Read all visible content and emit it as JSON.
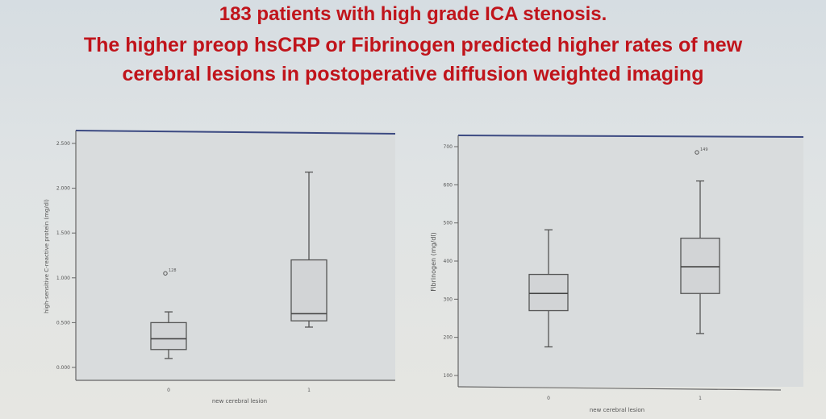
{
  "slide": {
    "title_line1": "183 patients with high grade ICA stenosis.",
    "title_line2": "The higher preop hsCRP or Fibrinogen predicted higher rates of new",
    "title_line3": "cerebral lesions in postoperative diffusion weighted imaging",
    "title_color": "#c0141b"
  },
  "chart_data": [
    {
      "type": "box",
      "ylabel": "high-sensitive C-reactive protein (mg/dl)",
      "xlabel": "new cerebral lesion",
      "categories": [
        "0",
        "1"
      ],
      "ylim": [
        0,
        2.5
      ],
      "yticks": [
        0.0,
        0.5,
        1.0,
        1.5,
        2.0,
        2.5
      ],
      "ytick_labels": [
        "0.000",
        "0.500",
        "1.000",
        "1.500",
        "2.000",
        "2.500"
      ],
      "boxes": [
        {
          "category": "0",
          "min": 0.1,
          "q1": 0.2,
          "median": 0.32,
          "q3": 0.5,
          "max": 0.62
        },
        {
          "category": "1",
          "min": 0.45,
          "q1": 0.52,
          "median": 0.6,
          "q3": 1.2,
          "max": 2.18
        }
      ],
      "outliers": [
        {
          "category": "0",
          "value": 1.05,
          "label": "128"
        }
      ],
      "grid": false
    },
    {
      "type": "box",
      "ylabel": "Fibrinogen (mg/dl)",
      "xlabel": "new cerebral lesion",
      "categories": [
        "0",
        "1"
      ],
      "ylim": [
        100,
        700
      ],
      "yticks": [
        100,
        200,
        300,
        400,
        500,
        600,
        700
      ],
      "ytick_labels": [
        "100",
        "200",
        "300",
        "400",
        "500",
        "600",
        "700"
      ],
      "boxes": [
        {
          "category": "0",
          "min": 175,
          "q1": 270,
          "median": 315,
          "q3": 365,
          "max": 482
        },
        {
          "category": "1",
          "min": 210,
          "q1": 315,
          "median": 385,
          "q3": 460,
          "max": 610
        }
      ],
      "outliers": [
        {
          "category": "1",
          "value": 685,
          "label": "149"
        }
      ],
      "grid": false
    }
  ]
}
